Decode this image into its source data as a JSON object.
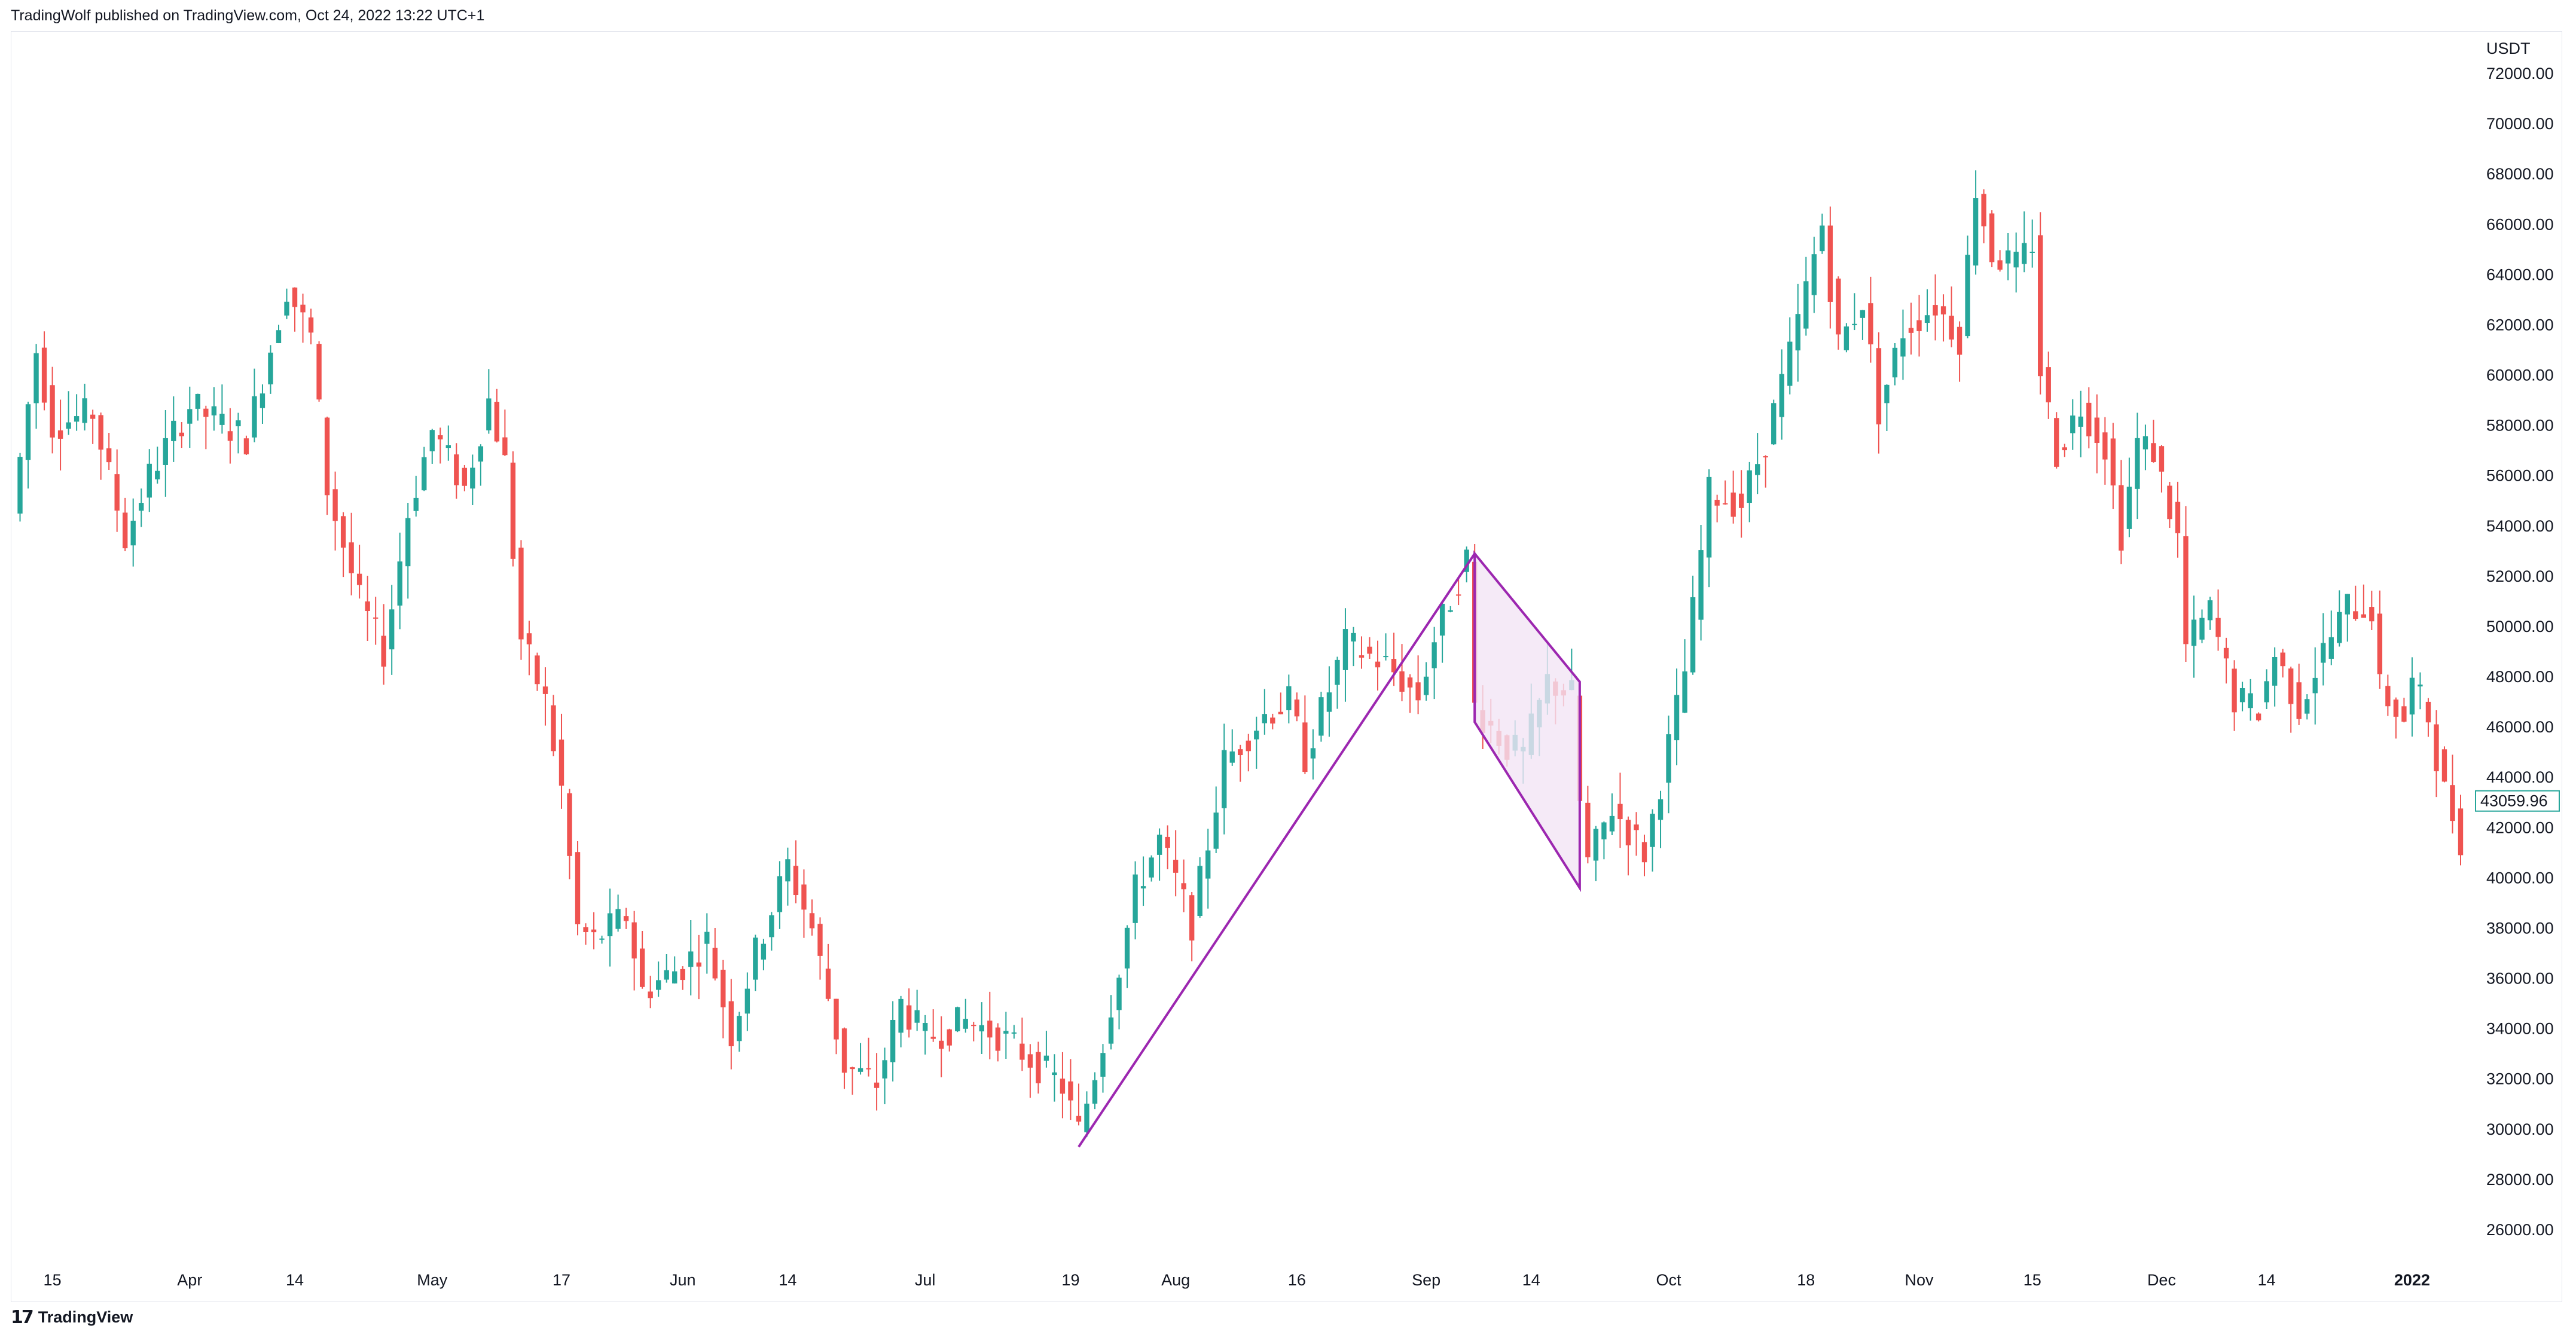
{
  "header": {
    "publish_line": "TradingWolf published on TradingView.com, Oct 24, 2022 13:22 UTC+1"
  },
  "footer": {
    "brand": "TradingView",
    "logo_icon": "tradingview-logo-icon"
  },
  "colors": {
    "up": "#26a69a",
    "down": "#ef5350",
    "pattern": "#9c27b0",
    "pattern_fill": "#f3e5f5"
  },
  "chart_data": {
    "type": "candlestick",
    "symbol_currency": "USDT",
    "last_price_label": "43059.96",
    "last_price": 43059.96,
    "ylim": [
      24500,
      73500
    ],
    "y_ticks": [
      26000,
      28000,
      30000,
      32000,
      34000,
      36000,
      38000,
      40000,
      42000,
      44000,
      46000,
      48000,
      50000,
      52000,
      54000,
      56000,
      58000,
      60000,
      62000,
      64000,
      66000,
      68000,
      70000,
      72000
    ],
    "y_tick_labels": [
      "26000.00",
      "28000.00",
      "30000.00",
      "32000.00",
      "34000.00",
      "36000.00",
      "38000.00",
      "40000.00",
      "42000.00",
      "44000.00",
      "46000.00",
      "48000.00",
      "50000.00",
      "52000.00",
      "54000.00",
      "56000.00",
      "58000.00",
      "60000.00",
      "62000.00",
      "64000.00",
      "66000.00",
      "68000.00",
      "70000.00",
      "72000.00"
    ],
    "x_ticks": [
      {
        "label": "15",
        "date": "2021-03-15",
        "bold": false
      },
      {
        "label": "Apr",
        "date": "2021-04-01",
        "bold": false
      },
      {
        "label": "14",
        "date": "2021-04-14",
        "bold": false
      },
      {
        "label": "May",
        "date": "2021-05-01",
        "bold": false
      },
      {
        "label": "17",
        "date": "2021-05-17",
        "bold": false
      },
      {
        "label": "Jun",
        "date": "2021-06-01",
        "bold": false
      },
      {
        "label": "14",
        "date": "2021-06-14",
        "bold": false
      },
      {
        "label": "Jul",
        "date": "2021-07-01",
        "bold": false
      },
      {
        "label": "19",
        "date": "2021-07-19",
        "bold": false
      },
      {
        "label": "Aug",
        "date": "2021-08-01",
        "bold": false
      },
      {
        "label": "16",
        "date": "2021-08-16",
        "bold": false
      },
      {
        "label": "Sep",
        "date": "2021-09-01",
        "bold": false
      },
      {
        "label": "14",
        "date": "2021-09-14",
        "bold": false
      },
      {
        "label": "Oct",
        "date": "2021-10-01",
        "bold": false
      },
      {
        "label": "18",
        "date": "2021-10-18",
        "bold": false
      },
      {
        "label": "Nov",
        "date": "2021-11-01",
        "bold": false
      },
      {
        "label": "15",
        "date": "2021-11-15",
        "bold": false
      },
      {
        "label": "Dec",
        "date": "2021-12-01",
        "bold": false
      },
      {
        "label": "14",
        "date": "2021-12-14",
        "bold": false
      },
      {
        "label": "2022",
        "date": "2022-01-01",
        "bold": true
      }
    ],
    "date_range": [
      "2021-03-10",
      "2022-01-07"
    ],
    "close_path": [
      [
        "2021-03-10",
        54500
      ],
      [
        "2021-03-13",
        61000
      ],
      [
        "2021-03-15",
        58000
      ],
      [
        "2021-03-20",
        58500
      ],
      [
        "2021-03-24",
        53500
      ],
      [
        "2021-03-27",
        56000
      ],
      [
        "2021-04-01",
        58800
      ],
      [
        "2021-04-08",
        57500
      ],
      [
        "2021-04-13",
        63500
      ],
      [
        "2021-04-16",
        61500
      ],
      [
        "2021-04-18",
        55500
      ],
      [
        "2021-04-22",
        51000
      ],
      [
        "2021-04-25",
        49000
      ],
      [
        "2021-04-28",
        54500
      ],
      [
        "2021-05-01",
        57800
      ],
      [
        "2021-05-05",
        55500
      ],
      [
        "2021-05-08",
        59000
      ],
      [
        "2021-05-10",
        56500
      ],
      [
        "2021-05-12",
        49500
      ],
      [
        "2021-05-15",
        47000
      ],
      [
        "2021-05-17",
        43500
      ],
      [
        "2021-05-19",
        38000
      ],
      [
        "2021-05-21",
        37500
      ],
      [
        "2021-05-25",
        38500
      ],
      [
        "2021-05-27",
        35500
      ],
      [
        "2021-06-01",
        36500
      ],
      [
        "2021-06-04",
        37500
      ],
      [
        "2021-06-07",
        33800
      ],
      [
        "2021-06-10",
        37000
      ],
      [
        "2021-06-14",
        40500
      ],
      [
        "2021-06-17",
        38000
      ],
      [
        "2021-06-21",
        32500
      ],
      [
        "2021-06-25",
        31800
      ],
      [
        "2021-06-28",
        35000
      ],
      [
        "2021-07-01",
        33600
      ],
      [
        "2021-07-06",
        34300
      ],
      [
        "2021-07-10",
        33800
      ],
      [
        "2021-07-14",
        32800
      ],
      [
        "2021-07-18",
        31700
      ],
      [
        "2021-07-20",
        29900
      ],
      [
        "2021-07-23",
        33500
      ],
      [
        "2021-07-27",
        39500
      ],
      [
        "2021-07-30",
        41500
      ],
      [
        "2021-08-03",
        38200
      ],
      [
        "2021-08-07",
        44600
      ],
      [
        "2021-08-12",
        46500
      ],
      [
        "2021-08-15",
        47000
      ],
      [
        "2021-08-17",
        44800
      ],
      [
        "2021-08-22",
        49300
      ],
      [
        "2021-08-27",
        48500
      ],
      [
        "2021-08-31",
        47200
      ],
      [
        "2021-09-02",
        49500
      ],
      [
        "2021-09-06",
        52700
      ],
      [
        "2021-09-07",
        46800
      ],
      [
        "2021-09-11",
        45200
      ],
      [
        "2021-09-13",
        44900
      ],
      [
        "2021-09-16",
        47800
      ],
      [
        "2021-09-19",
        47300
      ],
      [
        "2021-09-20",
        43000
      ],
      [
        "2021-09-21",
        40600
      ],
      [
        "2021-09-24",
        42800
      ],
      [
        "2021-09-28",
        41000
      ],
      [
        "2021-09-30",
        43800
      ],
      [
        "2021-10-03",
        48200
      ],
      [
        "2021-10-06",
        55300
      ],
      [
        "2021-10-10",
        54900
      ],
      [
        "2021-10-13",
        57400
      ],
      [
        "2021-10-16",
        60800
      ],
      [
        "2021-10-20",
        66000
      ],
      [
        "2021-10-22",
        61200
      ],
      [
        "2021-10-25",
        63000
      ],
      [
        "2021-10-27",
        58600
      ],
      [
        "2021-10-30",
        61800
      ],
      [
        "2021-11-03",
        62800
      ],
      [
        "2021-11-06",
        61500
      ],
      [
        "2021-11-08",
        67500
      ],
      [
        "2021-11-10",
        64800
      ],
      [
        "2021-11-13",
        64300
      ],
      [
        "2021-11-15",
        65300
      ],
      [
        "2021-11-16",
        60200
      ],
      [
        "2021-11-18",
        56900
      ],
      [
        "2021-11-21",
        58800
      ],
      [
        "2021-11-24",
        57200
      ],
      [
        "2021-11-26",
        53700
      ],
      [
        "2021-11-28",
        57300
      ],
      [
        "2021-11-30",
        57000
      ],
      [
        "2021-12-03",
        53500
      ],
      [
        "2021-12-04",
        49200
      ],
      [
        "2021-12-07",
        50600
      ],
      [
        "2021-12-10",
        47100
      ],
      [
        "2021-12-13",
        46700
      ],
      [
        "2021-12-15",
        48900
      ],
      [
        "2021-12-18",
        46800
      ],
      [
        "2021-12-21",
        49000
      ],
      [
        "2021-12-24",
        50800
      ],
      [
        "2021-12-27",
        50700
      ],
      [
        "2021-12-28",
        47500
      ],
      [
        "2021-12-31",
        46300
      ],
      [
        "2022-01-01",
        47700
      ],
      [
        "2022-01-03",
        46400
      ],
      [
        "2022-01-05",
        43400
      ],
      [
        "2022-01-07",
        41600
      ],
      [
        "2022-01-08",
        42000
      ]
    ],
    "annotations": [
      {
        "name": "flagpole-up",
        "type": "line",
        "from": [
          "2021-07-20",
          29300
        ],
        "to": [
          "2021-09-07",
          52900
        ]
      },
      {
        "name": "flag-channel",
        "type": "polygon",
        "points": [
          [
            "2021-09-07",
            52900
          ],
          [
            "2021-09-20",
            47800
          ],
          [
            "2021-09-20",
            39600
          ],
          [
            "2021-09-07",
            46200
          ]
        ]
      }
    ]
  }
}
